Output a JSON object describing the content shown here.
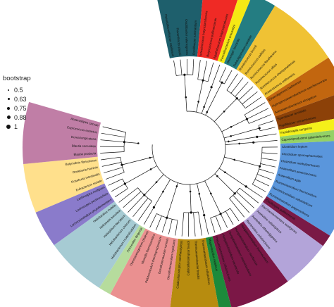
{
  "legend": {
    "title": "bootstrap",
    "items": [
      {
        "label": "0.5",
        "size": 2
      },
      {
        "label": "0.63",
        "size": 3
      },
      {
        "label": "0.75",
        "size": 4
      },
      {
        "label": "0.88",
        "size": 5
      },
      {
        "label": "1",
        "size": 6
      }
    ]
  },
  "clades": [
    {
      "color": "#1e5f6c",
      "labels": [
        "Pseudoflavonifractor capillosus",
        "Flavonifractor plautii",
        "Oscillibacter valericigenes",
        "Oscillibacter ruminantium"
      ]
    },
    {
      "color": "#ef2a25",
      "labels": [
        "Intestinimonas butyriciproducens",
        "Butyricicoccus pullicaecorum",
        "Agathobaculum butyriciproducens"
      ]
    },
    {
      "color": "#f5e914",
      "labels": [
        "Faecalibacterium prausnitzii"
      ]
    },
    {
      "color": "#247d82",
      "labels": [
        "Gemmiger formicilis",
        "Subdoligranulum variabile"
      ]
    },
    {
      "color": "#f0c234",
      "labels": [
        "Ruminococcus bromii",
        "Ruminococcus callidus",
        "Ruminococcus flavefaciens",
        "Ruminococcus albus",
        "Ruminococcus champanellensis",
        "Anaerotruncus colihominis"
      ]
    },
    {
      "color": "#c2660f",
      "labels": [
        "Ethanoligenens harbinense",
        "Hydrogenoanaerobacterium saccharovorans",
        "Acetanaerobacterium elongatum"
      ]
    },
    {
      "color": "#8c4108",
      "labels": [
        "Sporobacter termitidis",
        "Papillibacter cinnamivorans"
      ]
    },
    {
      "color": "#f5f01a",
      "labels": [
        "Fastidiosipila sanguinis"
      ]
    },
    {
      "color": "#94d166",
      "labels": [
        "Caproiciproducens galactitolivorans"
      ]
    },
    {
      "color": "#5a96dc",
      "labels": [
        "Clostridium leptum",
        "Clostridium sporosphaeroides",
        "Clostridium methylpentosum",
        "Anaerofilum pentosovorans",
        "Anaerofilum agile",
        "Ruminiclostridium thermocellum",
        "Ruminiclostridium cellulolyticum",
        "Ruminiclostridium papyrosolvens"
      ]
    },
    {
      "color": "#7a1a46",
      "labels": [
        "Oscillospira guilliermondii"
      ]
    },
    {
      "color": "#b3a4d9",
      "labels": [
        "Saccharofermentans acetigenes",
        "Acetivibrio cellulolyticus",
        "Acetivibrio ethanolgignens",
        "Bacteroides cellulosolvens"
      ]
    },
    {
      "color": "#7b1746",
      "labels": [
        "Hungateiclostridium thermocellum",
        "Hungateiclostridium clariflavum",
        "Hungateiclostridium straminisolvens",
        "Hungateiclostridium saccincola",
        "Pseudobacteroides cellulosolvens"
      ]
    },
    {
      "color": "#1c8a3b",
      "labels": [
        "Mageeibacillus indolicus"
      ]
    },
    {
      "color": "#b78c0f",
      "labels": [
        "Thermoanaerobacter ethanolicus",
        "Thermoanaerobacter brockii",
        "Caldicellulosiruptor bescii",
        "Caldicellulosiruptor saccharolyticus"
      ]
    },
    {
      "color": "#ea9090",
      "labels": [
        "Desulfotomaculum nigrificans",
        "Desulfotomaculum ruminis",
        "Pelotomaculum thermopropionicum",
        "Moorella thermoacetica",
        "Thermacetogenium phaeum"
      ]
    },
    {
      "color": "#b6dc9d",
      "labels": [
        "Ammonifex degensii"
      ]
    },
    {
      "color": "#a6cbd3",
      "labels": [
        "Heliobacterium modesticaldum",
        "Heliobacterium chlorum",
        "Heliophilum fasciatum",
        "Heliorestis baculata",
        "Heliobacillus mobilis"
      ]
    },
    {
      "color": "#8a7bcb",
      "labels": [
        "Lachnoclostridium phytofermentans",
        "Lachnospira pectinoschiza",
        "Lachnospira multipara"
      ]
    },
    {
      "color": "#ffe08c",
      "labels": [
        "Eubacterium rectale",
        "Roseburia intestinalis",
        "Roseburia hominis",
        "Butyrivibrio fibrisolvens"
      ]
    },
    {
      "color": "#c07ea6",
      "labels": [
        "Blautia producta",
        "Blautia coccoides",
        "Dorea longicatena",
        "Coprococcus eutactus",
        "Anaerostipes caccae"
      ]
    }
  ]
}
